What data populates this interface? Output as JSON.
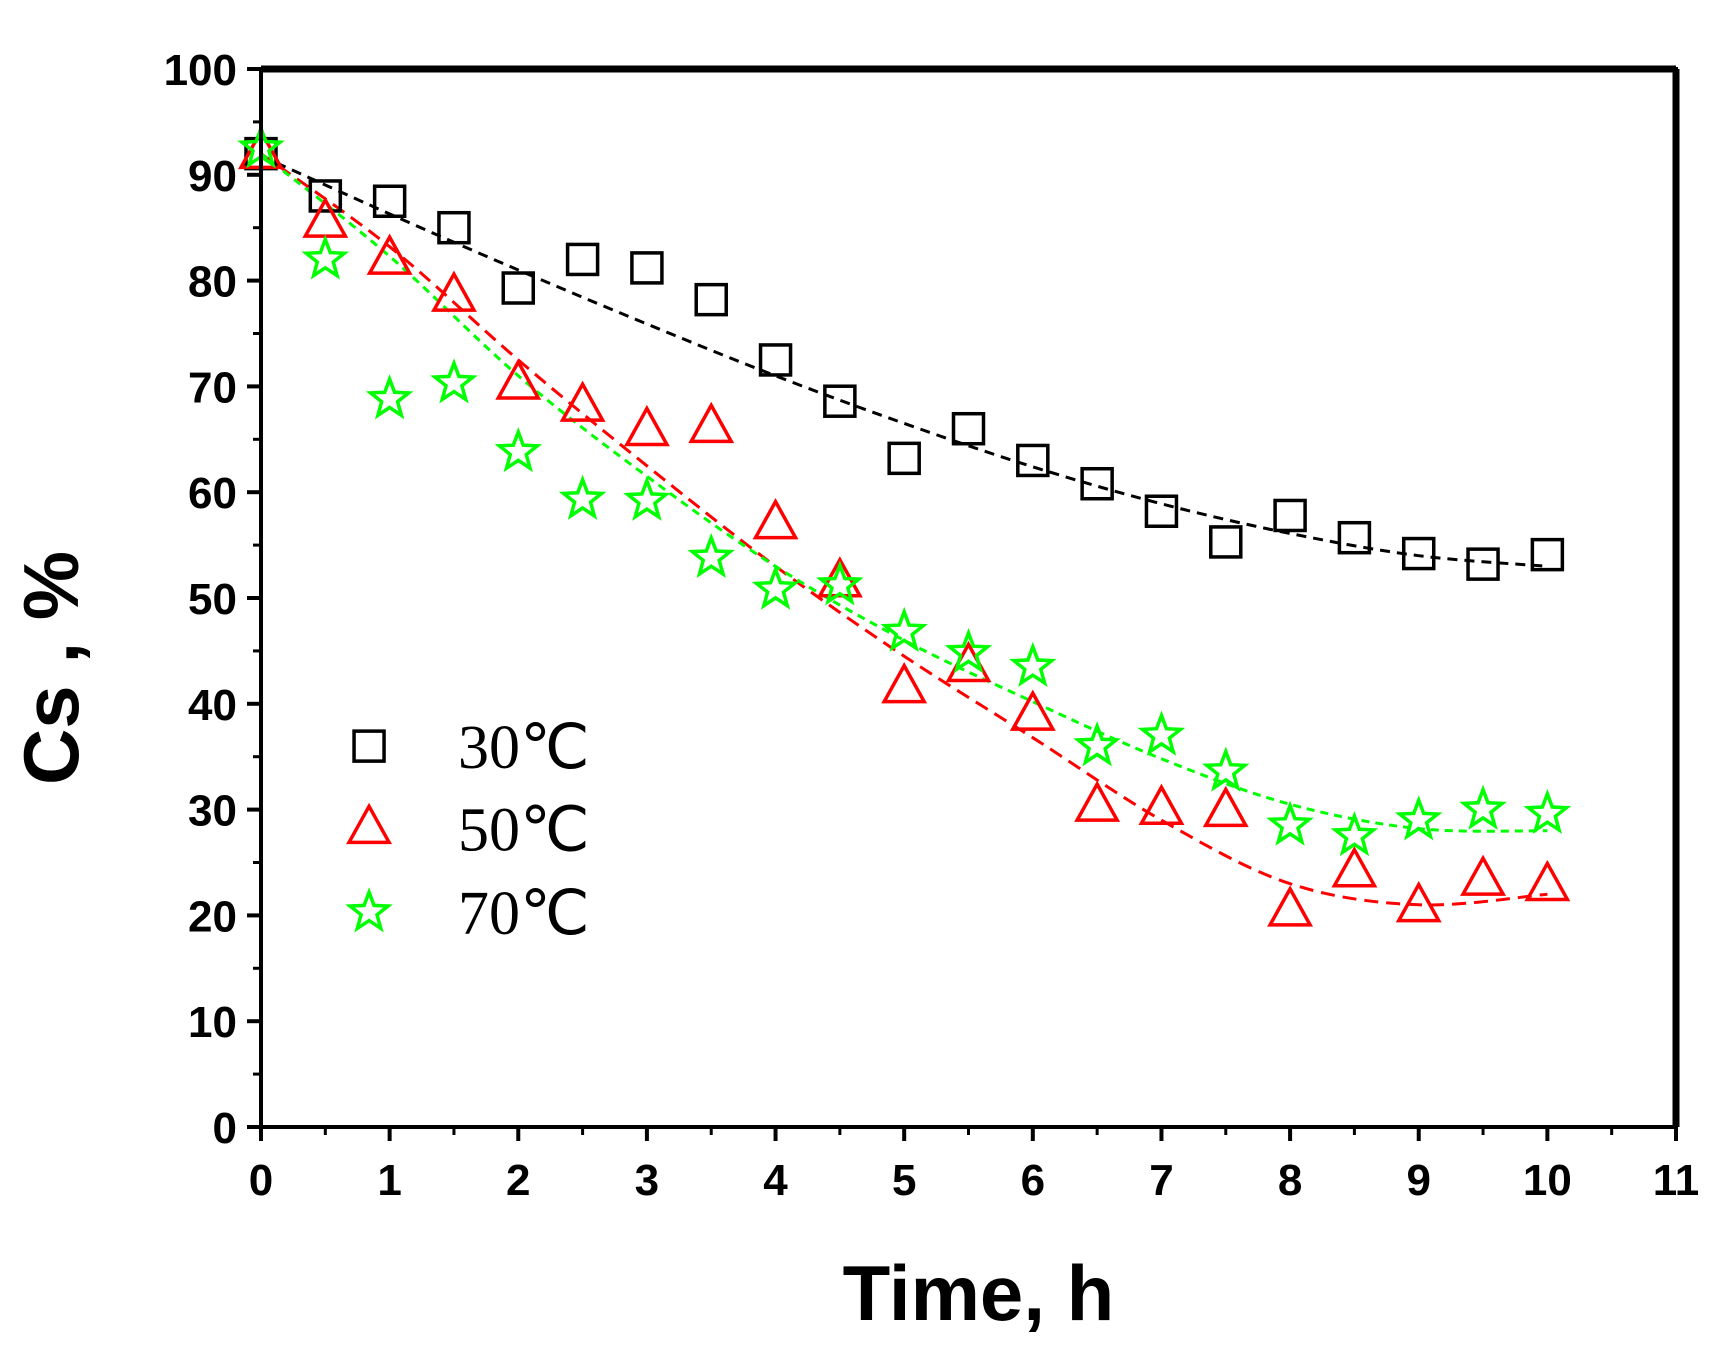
{
  "chart_data": {
    "type": "scatter",
    "title": "",
    "xlabel": "Time, h",
    "ylabel": "Cs , %",
    "xlim": [
      0,
      11
    ],
    "ylim": [
      0,
      100
    ],
    "xticks": [
      "0",
      "1",
      "2",
      "3",
      "4",
      "5",
      "6",
      "7",
      "8",
      "9",
      "10",
      "11"
    ],
    "yticks": [
      "0",
      "10",
      "20",
      "30",
      "40",
      "50",
      "60",
      "70",
      "80",
      "90",
      "100"
    ],
    "grid": false,
    "legend_position": "lower-left",
    "series": [
      {
        "name": "30℃",
        "marker": "square",
        "color": "#000000",
        "x": [
          0,
          0.5,
          1,
          1.5,
          2,
          2.5,
          3,
          3.5,
          4,
          4.5,
          5,
          5.5,
          6,
          6.5,
          7,
          7.5,
          8,
          8.5,
          9,
          9.5,
          10
        ],
        "y": [
          92,
          88,
          87.5,
          85,
          79.3,
          82,
          81.2,
          78.2,
          72.5,
          68.6,
          63.2,
          66,
          63,
          60.8,
          58.2,
          55.3,
          57.8,
          55.7,
          54.2,
          53.2,
          54.1
        ],
        "fit": [
          [
            0,
            91.8
          ],
          [
            1,
            86.3
          ],
          [
            2,
            81
          ],
          [
            3,
            75.9
          ],
          [
            4,
            71
          ],
          [
            5,
            66.5
          ],
          [
            6,
            62.4
          ],
          [
            7,
            58.9
          ],
          [
            8,
            56.1
          ],
          [
            9,
            54
          ],
          [
            10,
            53
          ]
        ]
      },
      {
        "name": "50℃",
        "marker": "triangle",
        "color": "#ff0000",
        "x": [
          0,
          0.5,
          1,
          1.5,
          2,
          2.5,
          3,
          3.5,
          4,
          4.5,
          5,
          5.5,
          6,
          6.5,
          7,
          7.5,
          8,
          8.5,
          9,
          9.5,
          10
        ],
        "y": [
          92,
          85.5,
          82,
          78.5,
          70.2,
          68.1,
          65.8,
          66.1,
          57,
          51.5,
          41.5,
          43.5,
          38.9,
          30.3,
          30,
          29.8,
          20.4,
          24.1,
          20.8,
          23.3,
          22.8
        ],
        "fit": [
          [
            0,
            92
          ],
          [
            1,
            83.2
          ],
          [
            2,
            72.5
          ],
          [
            3,
            62.5
          ],
          [
            4,
            53
          ],
          [
            5,
            44.5
          ],
          [
            6,
            36.8
          ],
          [
            7,
            29
          ],
          [
            8,
            23
          ],
          [
            9,
            21
          ],
          [
            10,
            22
          ]
        ]
      },
      {
        "name": "70℃",
        "marker": "star",
        "color": "#00ff00",
        "x": [
          0,
          0.5,
          1,
          1.5,
          2,
          2.5,
          3,
          3.5,
          4,
          4.5,
          5,
          5.5,
          6,
          6.5,
          7,
          7.5,
          8,
          8.5,
          9,
          9.5,
          10
        ],
        "y": [
          92.5,
          82,
          68.8,
          70.3,
          63.8,
          59.3,
          59.2,
          53.8,
          50.8,
          51.2,
          46.8,
          44.8,
          43.5,
          36,
          37,
          33.6,
          28.5,
          27.5,
          29,
          30,
          29.6
        ],
        "fit": [
          [
            0,
            92
          ],
          [
            1,
            82.3
          ],
          [
            2,
            71
          ],
          [
            3,
            61.5
          ],
          [
            4,
            53
          ],
          [
            5,
            46
          ],
          [
            6,
            40.2
          ],
          [
            7,
            34.8
          ],
          [
            8,
            30.5
          ],
          [
            9,
            28.2
          ],
          [
            10,
            28
          ]
        ]
      }
    ]
  }
}
